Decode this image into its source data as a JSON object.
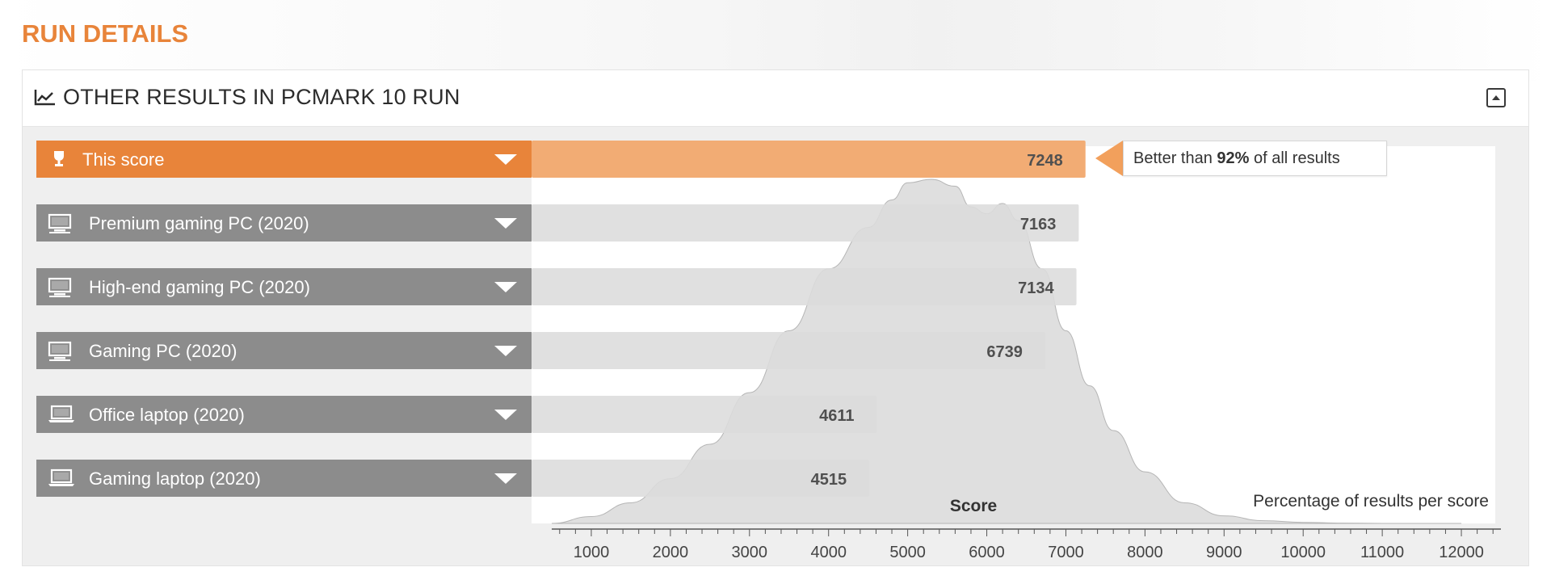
{
  "page": {
    "title": "RUN DETAILS"
  },
  "panel": {
    "title": "OTHER RESULTS IN PCMARK 10 RUN",
    "header_icon": "line-chart-icon",
    "collapse_icon": "collapse-up-icon"
  },
  "callout": {
    "prefix": "Better than ",
    "percent": "92%",
    "suffix": " of all results"
  },
  "colors": {
    "accent": "#e8843a",
    "accent_light": "#f2ac74",
    "row_label": "#8c8c8c",
    "row_bar": "#dcdcdc",
    "distribution": "#d6d6d6"
  },
  "chart_data": {
    "type": "bar",
    "orientation": "horizontal",
    "categories": [
      "This score",
      "Premium gaming PC (2020)",
      "High-end gaming PC (2020)",
      "Gaming PC (2020)",
      "Office laptop (2020)",
      "Gaming laptop (2020)"
    ],
    "values": [
      7248,
      7163,
      7134,
      6739,
      4611,
      4515
    ],
    "icons": [
      "trophy-icon",
      "desktop-icon",
      "desktop-icon",
      "desktop-icon",
      "laptop-icon",
      "laptop-icon"
    ],
    "highlight_index": 0,
    "xlabel": "Score",
    "distribution_label": "Percentage of results per score",
    "xlim": [
      500,
      12500
    ],
    "xticks": [
      1000,
      2000,
      3000,
      4000,
      5000,
      6000,
      7000,
      8000,
      9000,
      10000,
      11000,
      12000
    ],
    "distribution": {
      "x": [
        500,
        1000,
        1500,
        2000,
        2500,
        3000,
        3500,
        4000,
        4500,
        4800,
        5000,
        5300,
        5600,
        5800,
        6000,
        6200,
        6400,
        6700,
        7000,
        7300,
        7600,
        8000,
        8500,
        9000,
        9500,
        10000,
        10500,
        11000,
        12000
      ],
      "y": [
        0.0,
        0.02,
        0.06,
        0.13,
        0.23,
        0.38,
        0.56,
        0.74,
        0.86,
        0.94,
        0.99,
        1.0,
        0.98,
        0.92,
        0.9,
        0.93,
        0.88,
        0.74,
        0.56,
        0.4,
        0.27,
        0.15,
        0.06,
        0.022,
        0.008,
        0.003,
        0.001,
        0.0,
        0.0
      ]
    }
  }
}
